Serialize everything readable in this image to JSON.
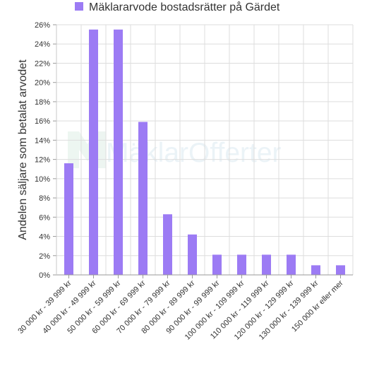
{
  "chart_data": {
    "type": "bar",
    "legend": "top-center",
    "grid": true,
    "series": [
      {
        "name": "Mäklararvode bostadsrätter på Gärdet",
        "color": "#9c7bf4",
        "values": [
          11.6,
          25.5,
          25.5,
          15.9,
          6.3,
          4.2,
          2.1,
          2.1,
          2.1,
          2.1,
          1.0,
          1.0
        ]
      }
    ],
    "categories": [
      "30 000 kr - 39 999 kr",
      "40 000 kr - 49 999 kr",
      "50 000 kr - 59 999 kr",
      "60 000 kr - 69 999 kr",
      "70 000 kr - 79 999 kr",
      "80 000 kr - 89 999 kr",
      "90 000 kr - 99 999 kr",
      "100 000 kr - 109 999 kr",
      "110 000 kr - 119 999 kr",
      "120 000 kr - 129 999 kr",
      "130 000 kr - 139 999 kr",
      "150 000 kr eller mer"
    ],
    "ylabel": "Andelen säljare som betalat arvodet",
    "ylim": [
      0,
      26
    ],
    "yticks": [
      "0%",
      "2%",
      "4%",
      "6%",
      "8%",
      "10%",
      "12%",
      "14%",
      "16%",
      "18%",
      "20%",
      "22%",
      "24%",
      "26%"
    ],
    "watermark": "MäklarOfferter"
  }
}
